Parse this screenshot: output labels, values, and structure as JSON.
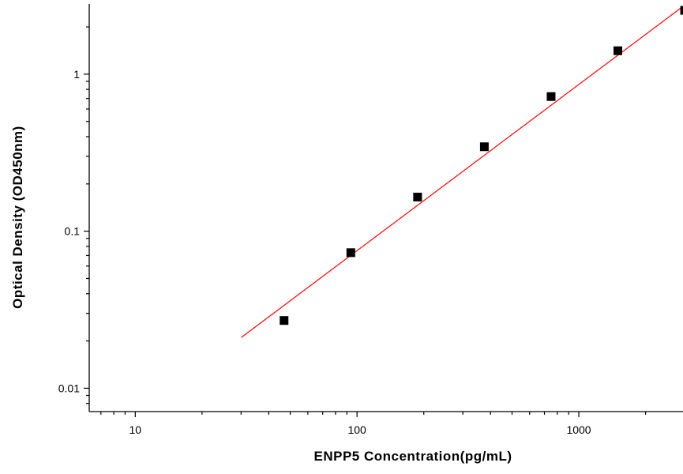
{
  "chart_data": {
    "type": "scatter",
    "title": "",
    "xlabel": "ENPP5  Concentration(pg/mL)",
    "ylabel": "Optical Density (OD450nm)",
    "xscale": "log",
    "yscale": "log",
    "xlim": [
      6.2,
      2950
    ],
    "ylim": [
      0.0071,
      2.8
    ],
    "x_ticks": [
      {
        "value": 10,
        "label": "10"
      },
      {
        "value": 100,
        "label": "100"
      },
      {
        "value": 1000,
        "label": "1000"
      }
    ],
    "y_ticks": [
      {
        "value": 0.01,
        "label": "0.01"
      },
      {
        "value": 0.1,
        "label": "0.1"
      },
      {
        "value": 1,
        "label": "1"
      }
    ],
    "grid": false,
    "legend": "none",
    "series": [
      {
        "marker": "square",
        "color": "#000000",
        "x": [
          46.88,
          93.75,
          187.5,
          375,
          750,
          1500,
          3000
        ],
        "y": [
          0.027,
          0.073,
          0.165,
          0.345,
          0.72,
          1.41,
          2.55
        ]
      }
    ],
    "fit_line": {
      "color": "#ff0000",
      "x": [
        30,
        3000
      ],
      "y": [
        0.021,
        2.75
      ]
    }
  }
}
